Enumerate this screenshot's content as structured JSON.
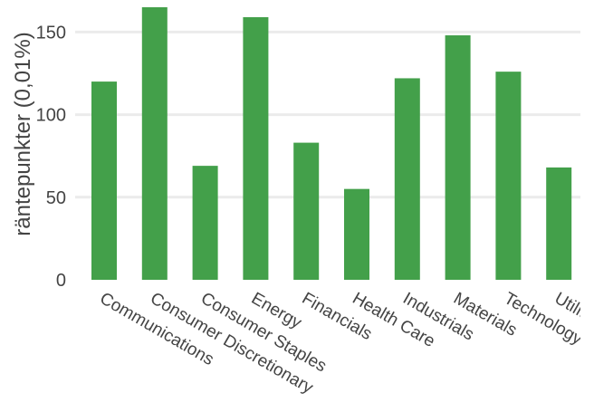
{
  "chart_data": {
    "type": "bar",
    "ylabel": "räntepunkter (0,01%)",
    "xlabel": "",
    "title": "",
    "ylim": [
      0,
      165
    ],
    "yticks": [
      0,
      50,
      100,
      150
    ],
    "grid": true,
    "legend": "none",
    "bar_color": "#43a04a",
    "categories": [
      "Communications",
      "Consumer Discretionary",
      "Consumer Staples",
      "Energy",
      "Financials",
      "Health Care",
      "Industrials",
      "Materials",
      "Technology",
      "Utilities"
    ],
    "values": [
      120,
      165,
      69,
      159,
      83,
      55,
      122,
      148,
      126,
      68
    ]
  }
}
